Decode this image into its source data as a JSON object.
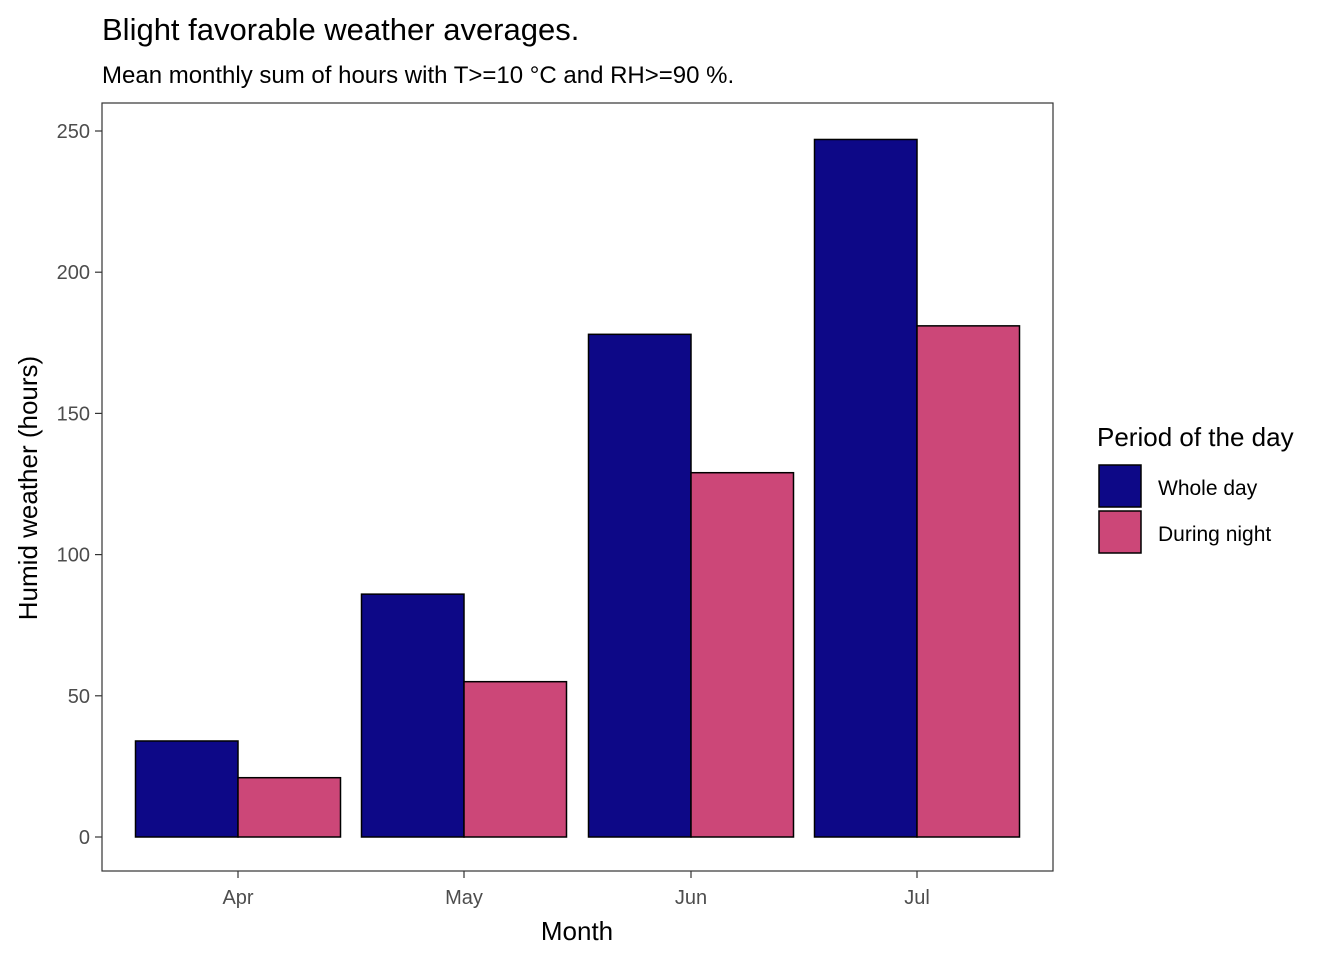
{
  "chart_data": {
    "type": "bar",
    "title": "Blight favorable weather averages.",
    "subtitle": "Mean monthly sum of hours with T>=10 °C and RH>=90 %.",
    "xlabel": "Month",
    "ylabel": "Humid weather (hours)",
    "categories": [
      "Apr",
      "May",
      "Jun",
      "Jul"
    ],
    "series": [
      {
        "name": "Whole day",
        "color": "#0d0887",
        "values": [
          34,
          86,
          178,
          247
        ]
      },
      {
        "name": "During night",
        "color": "#cc4778",
        "values": [
          21,
          55,
          129,
          181
        ]
      }
    ],
    "ylim": [
      -12,
      260
    ],
    "yticks": [
      0,
      50,
      100,
      150,
      200,
      250
    ],
    "grid": false,
    "legend": {
      "title": "Period of the day",
      "position": "right"
    }
  }
}
